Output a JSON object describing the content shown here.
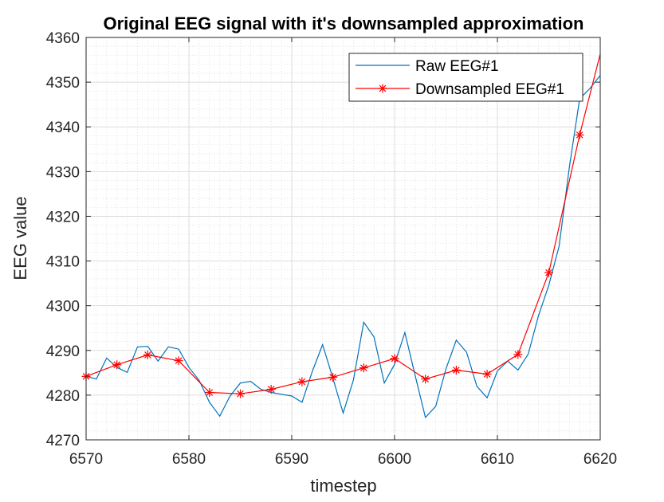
{
  "chart_data": {
    "type": "line",
    "title": "Original EEG signal with it's downsampled approximation",
    "xlabel": "timestep",
    "ylabel": "EEG value",
    "xlim": [
      6570,
      6620
    ],
    "ylim": [
      4270,
      4360
    ],
    "xticks": [
      "6570",
      "6580",
      "6590",
      "6600",
      "6610",
      "6620"
    ],
    "yticks": [
      "4270",
      "4280",
      "4290",
      "4300",
      "4310",
      "4320",
      "4330",
      "4340",
      "4350",
      "4360"
    ],
    "grid": true,
    "minor_grid": true,
    "legend_position": "top-right",
    "series": [
      {
        "name": "Raw EEG#1",
        "color": "#0072BD",
        "marker": "none",
        "x": [
          6570,
          6571,
          6572,
          6573,
          6574,
          6575,
          6576,
          6577,
          6578,
          6579,
          6580,
          6581,
          6582,
          6583,
          6584,
          6585,
          6586,
          6587,
          6588,
          6589,
          6590,
          6591,
          6592,
          6593,
          6594,
          6595,
          6596,
          6597,
          6598,
          6599,
          6600,
          6601,
          6602,
          6603,
          6604,
          6605,
          6606,
          6607,
          6608,
          6609,
          6610,
          6611,
          6612,
          6613,
          6614,
          6615,
          6616,
          6617,
          6618,
          6619,
          6620
        ],
        "y": [
          4284.2,
          4283.6,
          4288.3,
          4286.2,
          4285.1,
          4290.8,
          4290.9,
          4287.6,
          4290.8,
          4290.3,
          4286.2,
          4283.3,
          4278.4,
          4275.3,
          4279.8,
          4282.7,
          4283.1,
          4281.3,
          4280.6,
          4280.2,
          4279.8,
          4278.4,
          4285.3,
          4291.3,
          4283.8,
          4276.0,
          4283.4,
          4296.3,
          4293.0,
          4282.7,
          4286.9,
          4294.0,
          4284.4,
          4275.0,
          4277.5,
          4285.9,
          4292.3,
          4289.6,
          4282.0,
          4279.4,
          4285.4,
          4287.6,
          4285.6,
          4289.2,
          4297.8,
          4304.6,
          4313.3,
          4331.0,
          4346.3,
          4348.6,
          4351.5
        ]
      },
      {
        "name": "Downsampled EEG#1",
        "color": "#FF0000",
        "marker": "asterisk",
        "x": [
          6570,
          6573,
          6576,
          6579,
          6582,
          6585,
          6588,
          6591,
          6594,
          6597,
          6600,
          6603,
          6606,
          6609,
          6612,
          6615,
          6618,
          6620
        ],
        "y": [
          4284.2,
          4286.8,
          4289.0,
          4287.7,
          4280.6,
          4280.3,
          4281.3,
          4283.0,
          4284.0,
          4286.1,
          4288.2,
          4283.6,
          4285.6,
          4284.7,
          4289.1,
          4307.4,
          4338.2,
          4356.3
        ]
      }
    ]
  }
}
